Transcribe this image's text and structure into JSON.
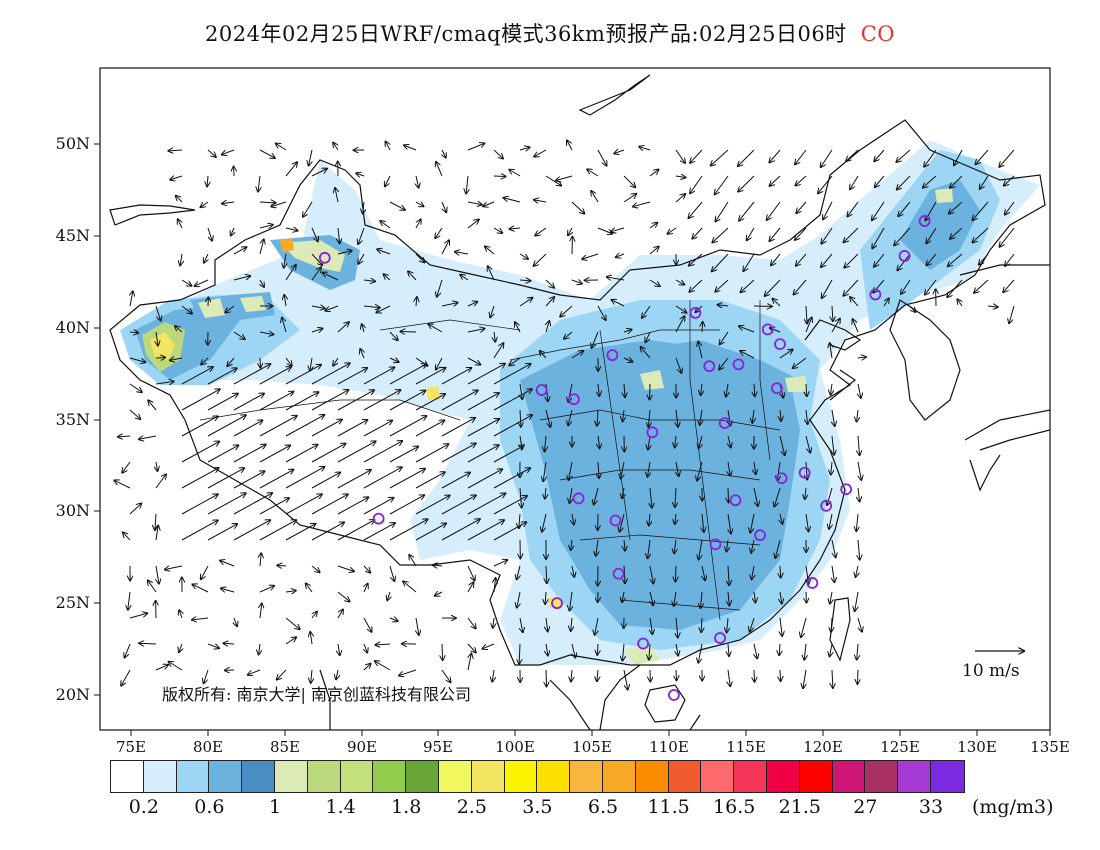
{
  "title": {
    "main": "2024年02月25日WRF/cmaq模式36km预报产品:02月25日06时",
    "species": "CO"
  },
  "axes": {
    "lat_labels": [
      "50N",
      "45N",
      "40N",
      "35N",
      "30N",
      "25N",
      "20N"
    ],
    "lon_labels": [
      "75E",
      "80E",
      "85E",
      "90E",
      "95E",
      "100E",
      "105E",
      "110E",
      "115E",
      "120E",
      "125E",
      "130E",
      "135E"
    ]
  },
  "colorbar": {
    "colors": [
      "#ffffff",
      "#d6eefb",
      "#9dd6f5",
      "#6cb2df",
      "#4a8dc3",
      "#dceab7",
      "#bcd87c",
      "#c3e17a",
      "#92cc4c",
      "#6aa637",
      "#f0f75f",
      "#f2e562",
      "#fcf300",
      "#fee000",
      "#f8b540",
      "#f7a826",
      "#fb8c00",
      "#f25a2f",
      "#fd6a6e",
      "#f53558",
      "#ef0045",
      "#fd0000",
      "#cf1576",
      "#a93062",
      "#a43ad3",
      "#7b2ae2"
    ],
    "labels": [
      "0.2",
      "0.6",
      "1",
      "1.4",
      "1.8",
      "2.5",
      "3.5",
      "6.5",
      "11.5",
      "16.5",
      "21.5",
      "27",
      "33"
    ],
    "unit": "(mg/m3)"
  },
  "copyright": "版权所有: 南京大学| 南京创蓝科技有限公司",
  "wind_scale": "10 m/s",
  "colors": {
    "border": "#111111",
    "station": "#8a22d9",
    "species_label": "#e8332c"
  },
  "stations": [
    {
      "lon": 87.6,
      "lat": 43.8
    },
    {
      "lon": 91.1,
      "lat": 29.6
    },
    {
      "lon": 101.7,
      "lat": 36.6
    },
    {
      "lon": 103.8,
      "lat": 36.1
    },
    {
      "lon": 106.3,
      "lat": 38.5
    },
    {
      "lon": 108.9,
      "lat": 34.3
    },
    {
      "lon": 111.7,
      "lat": 40.8
    },
    {
      "lon": 112.6,
      "lat": 37.9
    },
    {
      "lon": 114.5,
      "lat": 38.0
    },
    {
      "lon": 116.4,
      "lat": 39.9
    },
    {
      "lon": 117.2,
      "lat": 39.1
    },
    {
      "lon": 117.0,
      "lat": 36.7
    },
    {
      "lon": 113.6,
      "lat": 34.8
    },
    {
      "lon": 117.3,
      "lat": 31.8
    },
    {
      "lon": 118.8,
      "lat": 32.1
    },
    {
      "lon": 121.5,
      "lat": 31.2
    },
    {
      "lon": 120.2,
      "lat": 30.3
    },
    {
      "lon": 114.3,
      "lat": 30.6
    },
    {
      "lon": 115.9,
      "lat": 28.7
    },
    {
      "lon": 113.0,
      "lat": 28.2
    },
    {
      "lon": 119.3,
      "lat": 26.1
    },
    {
      "lon": 113.3,
      "lat": 23.1
    },
    {
      "lon": 108.3,
      "lat": 22.8
    },
    {
      "lon": 110.3,
      "lat": 20.0
    },
    {
      "lon": 106.7,
      "lat": 26.6
    },
    {
      "lon": 102.7,
      "lat": 25.0
    },
    {
      "lon": 104.1,
      "lat": 30.7
    },
    {
      "lon": 106.5,
      "lat": 29.5
    },
    {
      "lon": 123.4,
      "lat": 41.8
    },
    {
      "lon": 125.3,
      "lat": 43.9
    },
    {
      "lon": 126.6,
      "lat": 45.8
    }
  ]
}
